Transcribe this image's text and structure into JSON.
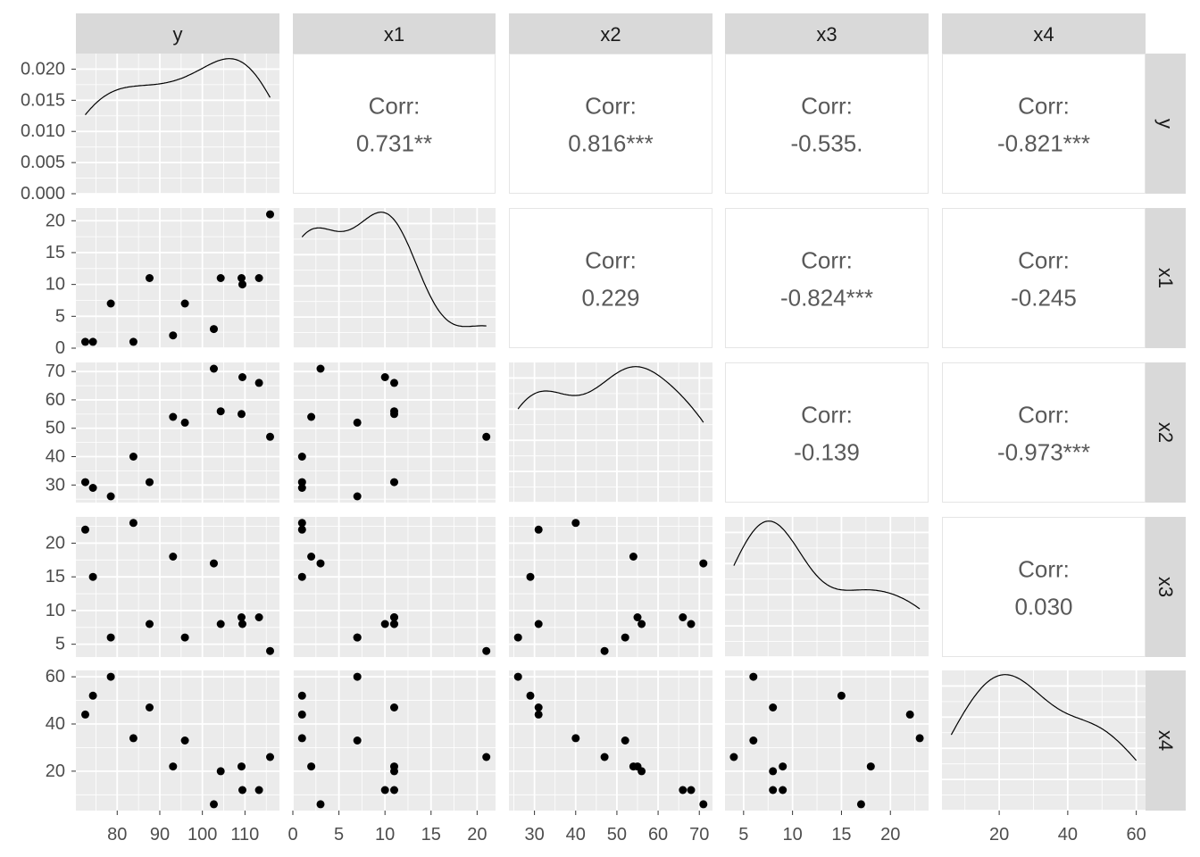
{
  "chart_data": {
    "type": "scatter",
    "variables": [
      "y",
      "x1",
      "x2",
      "x3",
      "x4"
    ],
    "observations": {
      "y": [
        78.5,
        74.3,
        104.3,
        87.6,
        95.9,
        109.2,
        102.7,
        72.5,
        93.1,
        115.9,
        83.8,
        113.3,
        109.4
      ],
      "x1": [
        7,
        1,
        11,
        11,
        7,
        11,
        3,
        1,
        2,
        21,
        1,
        11,
        10
      ],
      "x2": [
        26,
        29,
        56,
        31,
        52,
        55,
        71,
        31,
        54,
        47,
        40,
        66,
        68
      ],
      "x3": [
        6,
        15,
        8,
        8,
        6,
        9,
        17,
        22,
        18,
        4,
        23,
        9,
        8
      ],
      "x4": [
        60,
        52,
        20,
        47,
        33,
        22,
        6,
        44,
        22,
        26,
        34,
        12,
        12
      ]
    },
    "correlations": [
      {
        "row": "y",
        "col": "x1",
        "label": "Corr:",
        "value": "0.731**"
      },
      {
        "row": "y",
        "col": "x2",
        "label": "Corr:",
        "value": "0.816***"
      },
      {
        "row": "y",
        "col": "x3",
        "label": "Corr:",
        "value": "-0.535."
      },
      {
        "row": "y",
        "col": "x4",
        "label": "Corr:",
        "value": "-0.821***"
      },
      {
        "row": "x1",
        "col": "x2",
        "label": "Corr:",
        "value": "0.229"
      },
      {
        "row": "x1",
        "col": "x3",
        "label": "Corr:",
        "value": "-0.824***"
      },
      {
        "row": "x1",
        "col": "x4",
        "label": "Corr:",
        "value": "-0.245"
      },
      {
        "row": "x2",
        "col": "x3",
        "label": "Corr:",
        "value": "-0.139"
      },
      {
        "row": "x2",
        "col": "x4",
        "label": "Corr:",
        "value": "-0.973***"
      },
      {
        "row": "x3",
        "col": "x4",
        "label": "Corr:",
        "value": "0.030"
      }
    ],
    "density_y_ticks": [
      "0.000",
      "0.005",
      "0.010",
      "0.015",
      "0.020"
    ],
    "density_y_range": [
      0,
      0.0225
    ],
    "axes": {
      "y": {
        "range": [
          70.3,
          118.1
        ],
        "ticks": [
          80,
          90,
          100,
          110
        ]
      },
      "x1": {
        "range": [
          0,
          22
        ],
        "ticks": [
          0,
          5,
          10,
          15,
          20
        ]
      },
      "x2": {
        "range": [
          23.8,
          73.2
        ],
        "ticks": [
          30,
          40,
          50,
          60,
          70
        ]
      },
      "x3": {
        "range": [
          3.1,
          23.9
        ],
        "ticks": [
          5,
          10,
          15,
          20
        ]
      },
      "x4": {
        "range": [
          3.3,
          62.7
        ],
        "ticks": [
          20,
          40,
          60
        ]
      }
    },
    "row_ticks": {
      "x1": [
        0,
        5,
        10,
        15,
        20
      ],
      "x2": [
        30,
        40,
        50,
        60,
        70
      ],
      "x3": [
        5,
        10,
        15,
        20
      ],
      "x4": [
        20,
        40,
        60
      ]
    },
    "grid": true,
    "colors": {
      "panel_bg": "#ebebeb",
      "grid": "#ffffff",
      "strip_bg": "#d9d9d9",
      "point": "#000000",
      "corr_text": "#595959",
      "tick_text": "#4d4d4d"
    }
  }
}
